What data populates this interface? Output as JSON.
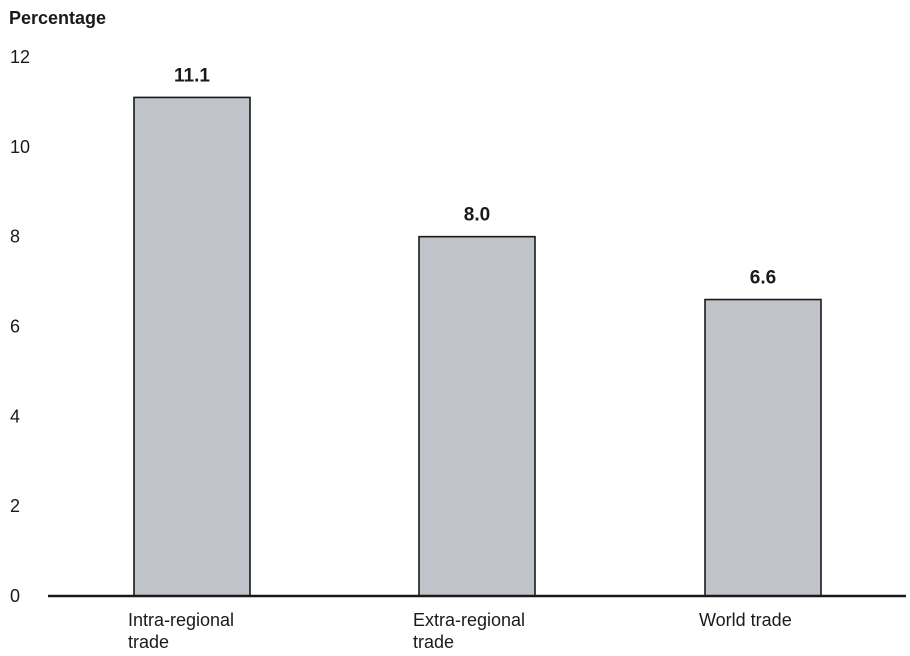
{
  "chart_data": {
    "type": "bar",
    "title": "",
    "xlabel": "",
    "ylabel": "Percentage",
    "ylim": [
      0,
      12
    ],
    "yticks": [
      0,
      2,
      4,
      6,
      8,
      10,
      12
    ],
    "grid": false,
    "categories": [
      [
        "Intra-regional",
        "trade"
      ],
      [
        "Extra-regional",
        "trade"
      ],
      [
        "World trade"
      ]
    ],
    "values": [
      11.1,
      8.0,
      6.6
    ],
    "data_labels": [
      "11.1",
      "8.0",
      "6.6"
    ],
    "colors": {
      "bar_fill": "#c0c3ca",
      "bar_stroke": "#1a1a1a",
      "axis": "#1a1a1a",
      "text": "#1a1a1a"
    }
  }
}
